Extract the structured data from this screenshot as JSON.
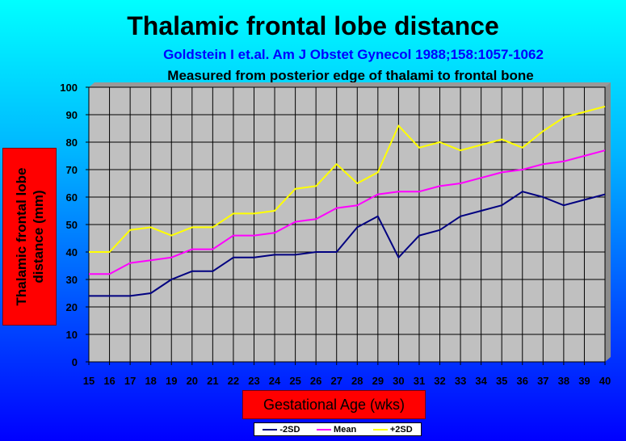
{
  "chart_data": {
    "type": "line",
    "title": "Thalamic frontal lobe distance",
    "subtitle": "Goldstein I et.al. Am J Obstet Gynecol 1988;158:1057-1062",
    "subtitle2": "Measured from posterior edge of thalami to frontal bone",
    "xlabel": "Gestational Age (wks)",
    "ylabel": "Thalamic frontal lobe distance (mm)",
    "ylim": [
      0,
      100
    ],
    "yticks": [
      0,
      10,
      20,
      30,
      40,
      50,
      60,
      70,
      80,
      90,
      100
    ],
    "grid": true,
    "legend_position": "bottom",
    "categories": [
      "15",
      "16",
      "17",
      "18",
      "19",
      "20",
      "21",
      "22",
      "23",
      "24",
      "25",
      "26",
      "27",
      "28",
      "29",
      "30",
      "31",
      "32",
      "33",
      "34",
      "35",
      "36",
      "37",
      "38",
      "39",
      "40"
    ],
    "series": [
      {
        "name": "-2SD",
        "color": "#000080",
        "values": [
          24,
          24,
          24,
          25,
          30,
          33,
          33,
          38,
          38,
          39,
          39,
          40,
          40,
          49,
          53,
          38,
          46,
          48,
          53,
          55,
          57,
          62,
          60,
          57,
          59,
          61
        ]
      },
      {
        "name": "Mean",
        "color": "#FF00FF",
        "values": [
          32,
          32,
          36,
          37,
          38,
          41,
          41,
          46,
          46,
          47,
          51,
          52,
          56,
          57,
          61,
          62,
          62,
          64,
          65,
          67,
          69,
          70,
          72,
          73,
          75,
          77
        ]
      },
      {
        "name": "+2SD",
        "color": "#FFFF00",
        "values": [
          40,
          40,
          48,
          49,
          46,
          49,
          49,
          54,
          54,
          55,
          63,
          64,
          72,
          65,
          69,
          86,
          78,
          80,
          77,
          79,
          81,
          78,
          84,
          89,
          91,
          93
        ]
      }
    ]
  }
}
